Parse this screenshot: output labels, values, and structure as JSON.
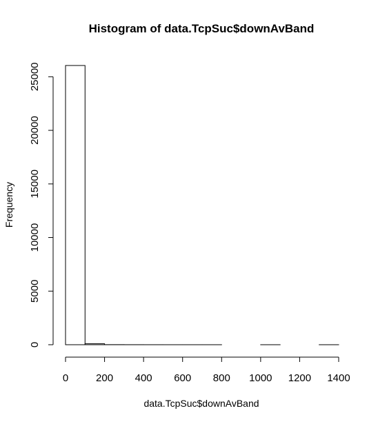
{
  "chart_data": {
    "type": "histogram",
    "title": "Histogram of data.TcpSuc$downAvBand",
    "xlabel": "data.TcpSuc$downAvBand",
    "ylabel": "Frequency",
    "bin_edges": [
      0,
      100,
      200,
      300,
      400,
      500,
      600,
      700,
      800,
      900,
      1000,
      1100,
      1200,
      1300,
      1400
    ],
    "counts": [
      26050,
      90,
      8,
      4,
      2,
      1,
      1,
      1,
      0,
      0,
      1,
      0,
      0,
      1
    ],
    "xlim": [
      0,
      1400
    ],
    "ylim": [
      0,
      26050
    ],
    "x_ticks": [
      0,
      200,
      400,
      600,
      800,
      1000,
      1200,
      1400
    ],
    "y_ticks": [
      0,
      5000,
      10000,
      15000,
      20000,
      25000
    ],
    "grid": false,
    "legend": "none",
    "bar_fill": "#ffffff",
    "bar_stroke": "#000000"
  }
}
